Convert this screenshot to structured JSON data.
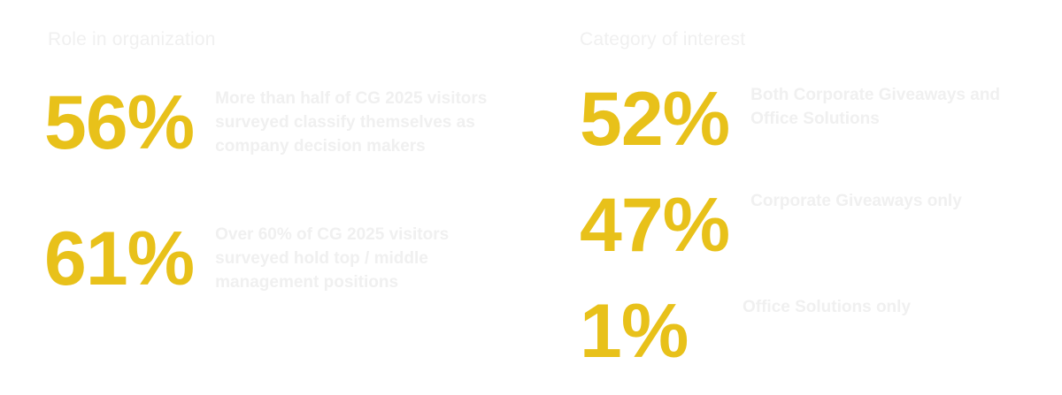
{
  "role": {
    "title": "Role in organization",
    "stats": [
      {
        "value": "56%",
        "text": "More than half of CG 2025 visitors surveyed classify themselves as company decision makers"
      },
      {
        "value": "61%",
        "text": "Over 60% of CG 2025 visitors surveyed hold top / middle management positions"
      }
    ]
  },
  "category": {
    "title": "Category of interest",
    "stats": [
      {
        "value": "52%",
        "text": "Both Corporate Giveaways and Office Solutions"
      },
      {
        "value": "47%",
        "text": "Corporate Giveaways only"
      },
      {
        "value": "1%",
        "text": "Office Solutions only"
      }
    ]
  },
  "colors": {
    "accent": "#e8c11a",
    "muted_text": "#f0f0f0",
    "background": "#ffffff"
  }
}
